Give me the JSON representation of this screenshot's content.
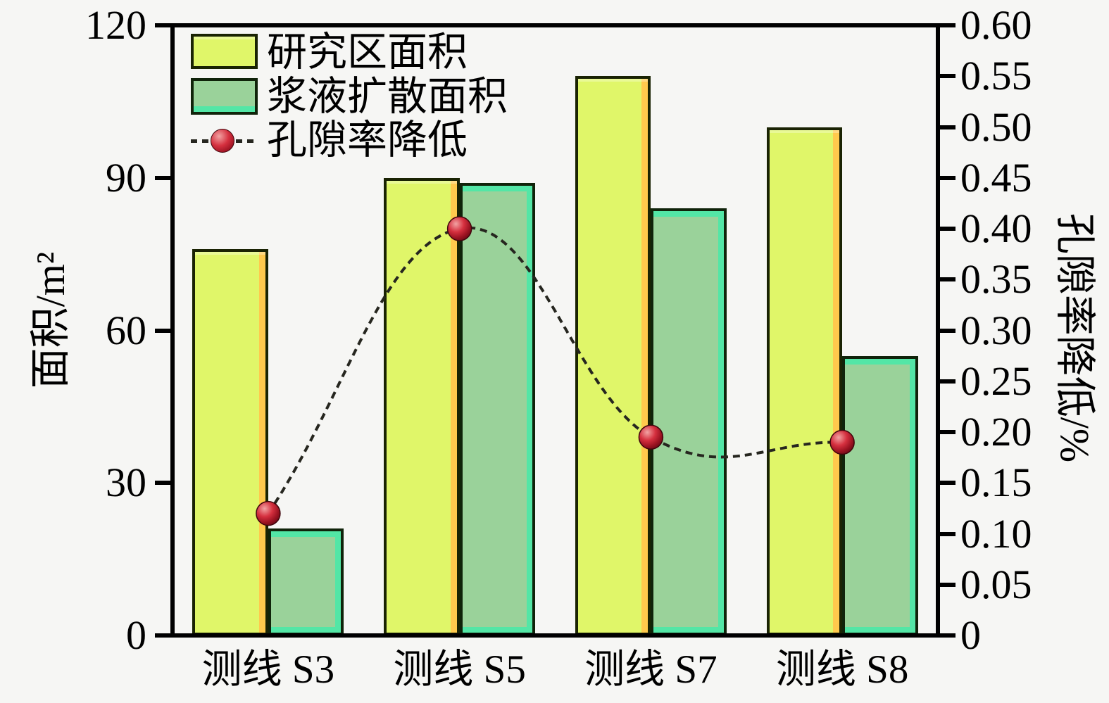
{
  "figure": {
    "background_color": "#f6f6f4",
    "frame_color": "#000000",
    "legend_position": "top-left"
  },
  "chart_data": {
    "type": "bar",
    "categories": [
      "测线 S3",
      "测线 S5",
      "测线 S7",
      "测线 S8"
    ],
    "series": [
      {
        "name": "研究区面积",
        "type": "bar",
        "axis": "left",
        "color": "#e0f669",
        "edge_color": "#ffc94d",
        "values": [
          76,
          90,
          110,
          100
        ]
      },
      {
        "name": "浆液扩散面积",
        "type": "bar",
        "axis": "left",
        "color": "#9ad29a",
        "edge_color": "#53e6a6",
        "values": [
          21,
          89,
          84,
          55
        ]
      },
      {
        "name": "孔隙率降低",
        "type": "line",
        "axis": "right",
        "line_style": "dashed",
        "line_color": "#26261f",
        "marker": "sphere",
        "marker_color": "#c22334",
        "values": [
          0.12,
          0.4,
          0.195,
          0.19
        ]
      }
    ],
    "left_axis": {
      "label": "面积/m²",
      "min": 0,
      "max": 120,
      "ticks": [
        "0",
        "30",
        "60",
        "90",
        "120"
      ]
    },
    "right_axis": {
      "label": "孔隙率降低/%",
      "min": 0,
      "max": 0.6,
      "ticks": [
        "0",
        "0.05",
        "0.10",
        "0.15",
        "0.20",
        "0.25",
        "0.30",
        "0.35",
        "0.40",
        "0.45",
        "0.50",
        "0.55",
        "0.60"
      ]
    },
    "grid": false,
    "title": ""
  }
}
